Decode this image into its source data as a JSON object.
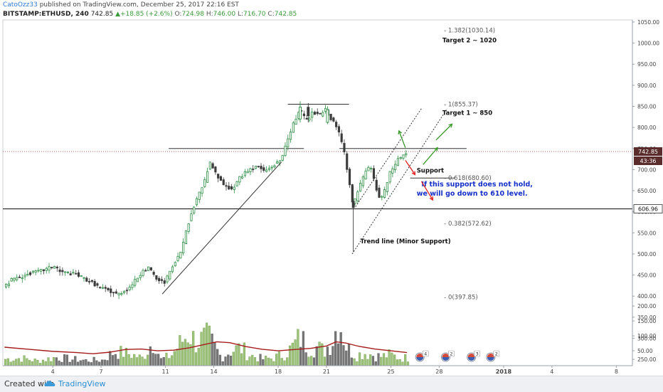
{
  "header": {
    "author": "CatoOzz33",
    "published_text": "published on TradingView.com, December 25, 2017 22:16 EST",
    "symbol": "BITSTAMP:ETHUSD, 240",
    "last": "742.85",
    "change_arrow": "▲",
    "change": "+18.85 (+2.6%)",
    "o_label": "O:",
    "o": "724.98",
    "h_label": "H:",
    "h": "746.00",
    "l_label": "L:",
    "l": "716.70",
    "c_label": "C:",
    "c": "742.85"
  },
  "footer": {
    "created_with": "Created with",
    "brand": "TradingView"
  },
  "colors": {
    "up": "#2f8f46",
    "down": "#3b3b3b",
    "ma": "#a61b1b",
    "vol_up": "#9ec37a",
    "vol_down": "#777777",
    "arrow_green": "#3a9a2a",
    "arrow_red": "#e02020",
    "note_blue": "#1530c8",
    "badge_dark": "#5b2c2c"
  },
  "chart_data": {
    "type": "candlestick",
    "price_axis": {
      "ticks": [
        1050,
        1000,
        950,
        900,
        850,
        800,
        750,
        700,
        650,
        600,
        550,
        500,
        450,
        400,
        350,
        300,
        250
      ],
      "tick_labels": [
        "1050.00",
        "1000.00",
        "950.00",
        "900.00",
        "850.00",
        "800.00",
        "750.00",
        "700.00",
        "650.00",
        "600.00",
        "550.00",
        "500.00",
        "450.00",
        "400.00",
        "350.00",
        "300.00",
        "250.00"
      ],
      "range": [
        235,
        1055
      ]
    },
    "volume_axis": {
      "ticks": [
        200,
        150,
        100,
        50
      ],
      "tick_labels": [
        "200.00",
        "150.00",
        "100.00",
        "50.00"
      ],
      "range": [
        0,
        310
      ]
    },
    "x_axis": {
      "ticks": [
        {
          "label": "4",
          "day": 4
        },
        {
          "label": "7",
          "day": 7
        },
        {
          "label": "11",
          "day": 11
        },
        {
          "label": "14",
          "day": 14
        },
        {
          "label": "18",
          "day": 18
        },
        {
          "label": "21",
          "day": 21
        },
        {
          "label": "25",
          "day": 25
        },
        {
          "label": "28",
          "day": 28
        },
        {
          "label": "2018",
          "day": 32
        },
        {
          "label": "4",
          "day": 35
        },
        {
          "label": "8",
          "day": 39
        }
      ],
      "range_days": [
        0.9,
        40.0
      ],
      "last_day": 26.1
    },
    "price_path": [
      [
        1.0,
        422
      ],
      [
        1.5,
        438
      ],
      [
        2.5,
        452
      ],
      [
        3.5,
        462
      ],
      [
        4.2,
        472
      ],
      [
        4.5,
        458
      ],
      [
        5.5,
        452
      ],
      [
        6.5,
        432
      ],
      [
        7.0,
        420
      ],
      [
        7.6,
        412
      ],
      [
        8.1,
        404
      ],
      [
        8.8,
        420
      ],
      [
        9.5,
        452
      ],
      [
        10.0,
        468
      ],
      [
        10.5,
        440
      ],
      [
        11.0,
        432
      ],
      [
        11.5,
        468
      ],
      [
        12.0,
        505
      ],
      [
        12.5,
        575
      ],
      [
        13.0,
        632
      ],
      [
        13.5,
        672
      ],
      [
        13.8,
        718
      ],
      [
        14.2,
        688
      ],
      [
        14.7,
        662
      ],
      [
        15.2,
        652
      ],
      [
        15.7,
        682
      ],
      [
        16.2,
        700
      ],
      [
        16.8,
        708
      ],
      [
        17.2,
        696
      ],
      [
        17.7,
        708
      ],
      [
        18.2,
        722
      ],
      [
        18.6,
        762
      ],
      [
        19.0,
        808
      ],
      [
        19.4,
        842
      ],
      [
        19.8,
        815
      ],
      [
        20.2,
        835
      ],
      [
        20.6,
        828
      ],
      [
        21.0,
        842
      ],
      [
        21.4,
        818
      ],
      [
        21.8,
        792
      ],
      [
        22.1,
        752
      ],
      [
        22.4,
        690
      ],
      [
        22.7,
        612
      ],
      [
        23.0,
        648
      ],
      [
        23.4,
        688
      ],
      [
        23.8,
        710
      ],
      [
        24.1,
        660
      ],
      [
        24.4,
        628
      ],
      [
        24.7,
        652
      ],
      [
        25.0,
        692
      ],
      [
        25.5,
        725
      ],
      [
        26.1,
        742
      ]
    ],
    "candles": [
      [
        19.3,
        820,
        848,
        862,
        812
      ],
      [
        19.8,
        848,
        828,
        858,
        812
      ],
      [
        21.0,
        812,
        842,
        850,
        808
      ],
      [
        22.6,
        625,
        610,
        660,
        505
      ]
    ],
    "last_price": 742.85,
    "last_price_label": "742.85",
    "countdown_label": "43:36",
    "level_label": "606.96",
    "levels": [
      {
        "name": "resistance-top",
        "price": 855,
        "from_day": 18.6,
        "to_day": 22.4
      },
      {
        "name": "resistance-mid",
        "price": 750,
        "from_day": 11.2,
        "to_day": 19.6
      },
      {
        "name": "resistance-right",
        "price": 750,
        "from_day": 21.8,
        "to_day": 29.7
      },
      {
        "name": "support-line",
        "price": 680,
        "from_day": 26.2,
        "to_day": 29.0
      },
      {
        "name": "level-606",
        "price": 606.96,
        "from_day": 0.9,
        "to_day": 40.0
      }
    ],
    "trendlines": [
      {
        "name": "triangle-trendline",
        "from": [
          10.8,
          405
        ],
        "to": [
          18.2,
          718
        ],
        "dashed": false
      },
      {
        "name": "channel-lower",
        "from": [
          22.6,
          500
        ],
        "to": [
          28.5,
          845
        ],
        "dashed": true
      },
      {
        "name": "channel-upper",
        "from": [
          22.8,
          612
        ],
        "to": [
          26.9,
          845
        ],
        "dashed": true
      }
    ],
    "fib_levels": [
      {
        "label": "1.382(1030.14)",
        "price": 1030.14
      },
      {
        "label": "1(855.37)",
        "price": 855.37
      },
      {
        "label": "0.618(680.60)",
        "price": 680.6
      },
      {
        "label": "0.382(572.62)",
        "price": 572.62
      },
      {
        "label": "0(397.85)",
        "price": 397.85
      }
    ],
    "annotations": [
      {
        "name": "target-2",
        "text": "Target 2 ~ 1020",
        "day": 28.2,
        "price": 1002
      },
      {
        "name": "target-1",
        "text": "Target 1 ~ 850",
        "day": 28.2,
        "price": 830
      },
      {
        "name": "support-text",
        "text": "Support",
        "day": 26.6,
        "price": 693
      },
      {
        "name": "note-line-1",
        "text": "If this support does not hold,",
        "day": 26.9,
        "price": 660
      },
      {
        "name": "note-line-2",
        "text": "we will go down to 610 level.",
        "day": 26.6,
        "price": 638
      },
      {
        "name": "trend-line-text",
        "text": "Trend line (Minor Support)",
        "day": 23.1,
        "price": 525
      }
    ],
    "arrows": [
      {
        "name": "green-arrow-up-small",
        "color": "green",
        "from": [
          25.9,
          752
        ],
        "to": [
          25.5,
          792
        ]
      },
      {
        "name": "green-arrow-up-big",
        "color": "green",
        "from": [
          27.8,
          770
        ],
        "to": [
          28.8,
          808
        ]
      },
      {
        "name": "green-arrow-up-mid",
        "color": "green",
        "from": [
          27.0,
          712
        ],
        "to": [
          27.9,
          752
        ]
      },
      {
        "name": "red-arrow-down-small",
        "color": "red",
        "from": [
          25.9,
          722
        ],
        "to": [
          26.5,
          688
        ]
      },
      {
        "name": "red-arrow-down-big",
        "color": "red",
        "from": [
          26.9,
          672
        ],
        "to": [
          27.6,
          628
        ]
      }
    ],
    "volume_peaks": [
      [
        1.0,
        35
      ],
      [
        2.0,
        40
      ],
      [
        3.0,
        25
      ],
      [
        4.2,
        45
      ],
      [
        5.0,
        35
      ],
      [
        6.0,
        28
      ],
      [
        7.0,
        30
      ],
      [
        7.8,
        75
      ],
      [
        8.8,
        60
      ],
      [
        9.5,
        40
      ],
      [
        10.3,
        150
      ],
      [
        10.6,
        30
      ],
      [
        11.3,
        55
      ],
      [
        12.4,
        180
      ],
      [
        12.8,
        125
      ],
      [
        13.6,
        150
      ],
      [
        14.4,
        45
      ],
      [
        15.0,
        80
      ],
      [
        15.6,
        95
      ],
      [
        16.2,
        55
      ],
      [
        17.0,
        35
      ],
      [
        17.6,
        40
      ],
      [
        18.3,
        60
      ],
      [
        18.8,
        95
      ],
      [
        19.3,
        150
      ],
      [
        19.8,
        105
      ],
      [
        20.3,
        100
      ],
      [
        20.8,
        78
      ],
      [
        21.4,
        150
      ],
      [
        21.7,
        260
      ],
      [
        22.2,
        95
      ],
      [
        22.8,
        55
      ],
      [
        23.3,
        70
      ],
      [
        23.8,
        58
      ],
      [
        24.3,
        48
      ],
      [
        24.9,
        58
      ],
      [
        25.5,
        40
      ],
      [
        26.0,
        42
      ]
    ],
    "ma_path": [
      [
        1.0,
        62
      ],
      [
        2.5,
        55
      ],
      [
        4.0,
        48
      ],
      [
        5.5,
        44
      ],
      [
        6.5,
        40
      ],
      [
        7.5,
        45
      ],
      [
        8.5,
        54
      ],
      [
        9.5,
        56
      ],
      [
        10.5,
        50
      ],
      [
        11.5,
        52
      ],
      [
        12.5,
        60
      ],
      [
        13.5,
        72
      ],
      [
        14.2,
        80
      ],
      [
        15.0,
        77
      ],
      [
        16.0,
        64
      ],
      [
        17.0,
        55
      ],
      [
        18.0,
        50
      ],
      [
        19.0,
        54
      ],
      [
        20.0,
        58
      ],
      [
        21.0,
        66
      ],
      [
        21.6,
        80
      ],
      [
        22.2,
        76
      ],
      [
        23.0,
        65
      ],
      [
        24.0,
        56
      ],
      [
        25.0,
        50
      ],
      [
        26.0,
        44
      ]
    ],
    "event_badges": [
      {
        "day": 26.8,
        "count": "4"
      },
      {
        "day": 28.4,
        "count": "2"
      },
      {
        "day": 30.0,
        "count": "3"
      },
      {
        "day": 31.2,
        "count": "2"
      }
    ]
  }
}
